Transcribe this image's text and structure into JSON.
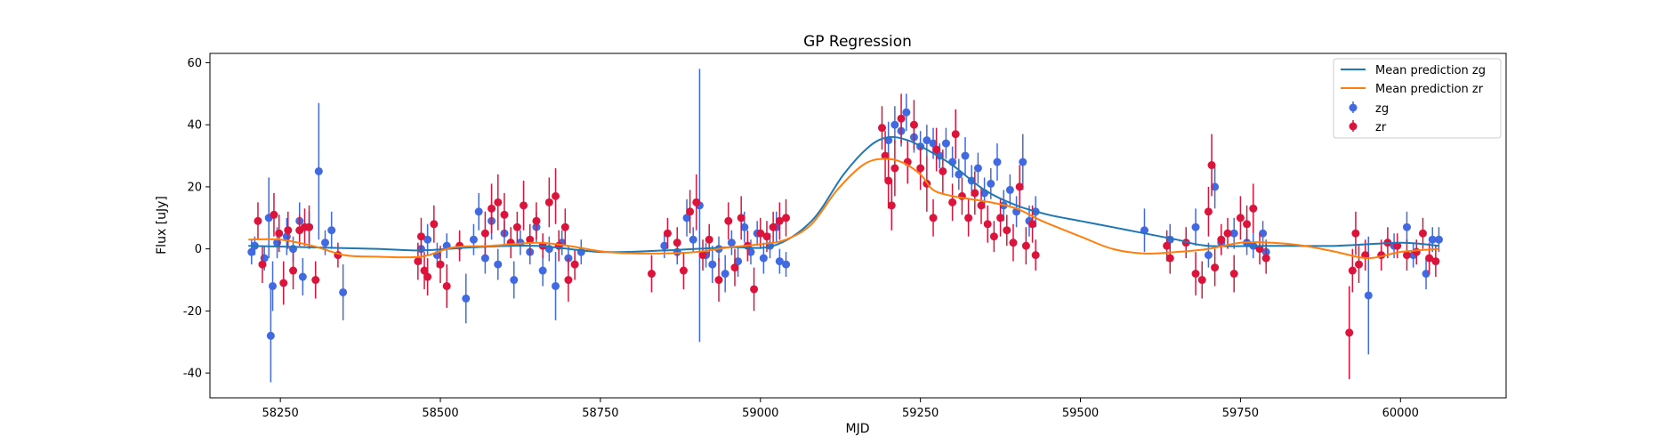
{
  "chart_data": {
    "type": "scatter",
    "title": "GP Regression",
    "xlabel": "MJD",
    "ylabel": "Flux [uJy]",
    "xlim": [
      58140,
      60165
    ],
    "ylim": [
      -48,
      63
    ],
    "xticks": [
      58250,
      58500,
      58750,
      59000,
      59250,
      59500,
      59750,
      60000
    ],
    "yticks": [
      -40,
      -20,
      0,
      20,
      40,
      60
    ],
    "grid": false,
    "legend": "top-right",
    "lines": [
      {
        "name": "Mean prediction zg",
        "color": "#1f77b4",
        "x": [
          58200,
          58300,
          58400,
          58470,
          58550,
          58650,
          58750,
          58850,
          58950,
          59020,
          59080,
          59130,
          59170,
          59200,
          59230,
          59260,
          59300,
          59350,
          59400,
          59450,
          59500,
          59550,
          59600,
          59650,
          59700,
          59800,
          59900,
          60000,
          60060
        ],
        "y": [
          1,
          0.5,
          0,
          -0.5,
          0.5,
          1,
          -1,
          -0.5,
          0.5,
          1,
          9,
          24,
          33,
          36,
          35,
          32,
          27,
          19,
          14,
          11,
          9,
          7,
          5,
          3,
          1,
          1,
          1,
          2,
          1
        ]
      },
      {
        "name": "Mean prediction zr",
        "color": "#ff7f0e",
        "x": [
          58200,
          58250,
          58300,
          58350,
          58400,
          58470,
          58520,
          58580,
          58650,
          58700,
          58760,
          58830,
          58900,
          58950,
          59000,
          59040,
          59080,
          59120,
          59160,
          59190,
          59220,
          59250,
          59270,
          59300,
          59330,
          59360,
          59400,
          59440,
          59500,
          59550,
          59600,
          59650,
          59700,
          59750,
          59800,
          59850,
          59900,
          59950,
          60000,
          60060
        ],
        "y": [
          3,
          3,
          1,
          -2,
          -2.5,
          -2.5,
          0.5,
          1,
          2,
          1,
          -1,
          -1.5,
          -1,
          0.5,
          1.5,
          3,
          8,
          19,
          27,
          29,
          28,
          24,
          19,
          17,
          16,
          15,
          13,
          9,
          4,
          0,
          -1.5,
          -1,
          0,
          2,
          2,
          1,
          -1,
          -3,
          -1,
          0
        ]
      }
    ],
    "series": [
      {
        "name": "zg",
        "color": "#4169e1",
        "points": [
          [
            58205,
            -1,
            4
          ],
          [
            58210,
            1,
            3
          ],
          [
            58225,
            -3,
            4
          ],
          [
            58232,
            10,
            13
          ],
          [
            58235,
            -28,
            15
          ],
          [
            58238,
            -12,
            8
          ],
          [
            58245,
            2,
            5
          ],
          [
            58260,
            4,
            6
          ],
          [
            58270,
            0,
            4
          ],
          [
            58280,
            9,
            6
          ],
          [
            58285,
            -9,
            6
          ],
          [
            58295,
            7,
            5
          ],
          [
            58310,
            25,
            22
          ],
          [
            58320,
            2,
            4
          ],
          [
            58330,
            6,
            6
          ],
          [
            58348,
            -14,
            9
          ],
          [
            58470,
            0,
            5
          ],
          [
            58480,
            3,
            5
          ],
          [
            58495,
            -2,
            4
          ],
          [
            58510,
            1,
            4
          ],
          [
            58540,
            -16,
            8
          ],
          [
            58552,
            3,
            5
          ],
          [
            58560,
            12,
            6
          ],
          [
            58570,
            -3,
            5
          ],
          [
            58580,
            9,
            6
          ],
          [
            58590,
            -5,
            5
          ],
          [
            58600,
            5,
            4
          ],
          [
            58615,
            -10,
            6
          ],
          [
            58625,
            2,
            4
          ],
          [
            58640,
            -1,
            4
          ],
          [
            58650,
            7,
            5
          ],
          [
            58660,
            -7,
            5
          ],
          [
            58670,
            0,
            4
          ],
          [
            58680,
            -12,
            11
          ],
          [
            58690,
            2,
            4
          ],
          [
            58700,
            -3,
            4
          ],
          [
            58720,
            -1,
            4
          ],
          [
            58850,
            1,
            4
          ],
          [
            58870,
            -1,
            4
          ],
          [
            58885,
            10,
            6
          ],
          [
            58895,
            3,
            4
          ],
          [
            58905,
            14,
            44
          ],
          [
            58915,
            -2,
            4
          ],
          [
            58925,
            -5,
            6
          ],
          [
            58935,
            0,
            4
          ],
          [
            58945,
            -8,
            6
          ],
          [
            58955,
            2,
            4
          ],
          [
            58965,
            -4,
            5
          ],
          [
            58975,
            7,
            5
          ],
          [
            58985,
            -1,
            4
          ],
          [
            58995,
            5,
            4
          ],
          [
            59005,
            -3,
            5
          ],
          [
            59015,
            1,
            4
          ],
          [
            59025,
            7,
            5
          ],
          [
            59030,
            -4,
            4
          ],
          [
            59040,
            -5,
            4
          ],
          [
            59200,
            35,
            6
          ],
          [
            59210,
            40,
            6
          ],
          [
            59220,
            38,
            5
          ],
          [
            59228,
            44,
            6
          ],
          [
            59240,
            36,
            5
          ],
          [
            59250,
            33,
            5
          ],
          [
            59260,
            35,
            5
          ],
          [
            59270,
            34,
            5
          ],
          [
            59280,
            30,
            4
          ],
          [
            59290,
            34,
            5
          ],
          [
            59300,
            28,
            5
          ],
          [
            59310,
            24,
            5
          ],
          [
            59320,
            30,
            6
          ],
          [
            59330,
            22,
            5
          ],
          [
            59340,
            26,
            5
          ],
          [
            59350,
            18,
            5
          ],
          [
            59360,
            21,
            5
          ],
          [
            59370,
            28,
            6
          ],
          [
            59380,
            14,
            5
          ],
          [
            59390,
            19,
            5
          ],
          [
            59400,
            12,
            5
          ],
          [
            59410,
            28,
            9
          ],
          [
            59420,
            9,
            5
          ],
          [
            59430,
            12,
            5
          ],
          [
            59600,
            6,
            7
          ],
          [
            59640,
            3,
            5
          ],
          [
            59680,
            7,
            6
          ],
          [
            59700,
            -2,
            4
          ],
          [
            59710,
            20,
            7
          ],
          [
            59720,
            2,
            4
          ],
          [
            59740,
            5,
            5
          ],
          [
            59760,
            2,
            4
          ],
          [
            59770,
            1,
            4
          ],
          [
            59785,
            5,
            4
          ],
          [
            59790,
            -1,
            4
          ],
          [
            59950,
            -15,
            19
          ],
          [
            59990,
            1,
            4
          ],
          [
            60010,
            7,
            5
          ],
          [
            60020,
            -2,
            4
          ],
          [
            60040,
            -8,
            5
          ],
          [
            60050,
            3,
            4
          ],
          [
            60060,
            3,
            4
          ]
        ]
      },
      {
        "name": "zr",
        "color": "#dc143c",
        "points": [
          [
            58215,
            9,
            6
          ],
          [
            58222,
            -5,
            6
          ],
          [
            58240,
            11,
            7
          ],
          [
            58248,
            5,
            6
          ],
          [
            58255,
            -11,
            7
          ],
          [
            58262,
            6,
            6
          ],
          [
            58270,
            -7,
            6
          ],
          [
            58280,
            6,
            5
          ],
          [
            58288,
            7,
            6
          ],
          [
            58295,
            7,
            7
          ],
          [
            58305,
            -10,
            6
          ],
          [
            58340,
            -2,
            4
          ],
          [
            58465,
            -4,
            6
          ],
          [
            58470,
            4,
            6
          ],
          [
            58475,
            -7,
            6
          ],
          [
            58480,
            -9,
            6
          ],
          [
            58490,
            8,
            6
          ],
          [
            58500,
            -5,
            6
          ],
          [
            58510,
            -12,
            7
          ],
          [
            58530,
            1,
            5
          ],
          [
            58570,
            5,
            7
          ],
          [
            58580,
            13,
            8
          ],
          [
            58590,
            15,
            9
          ],
          [
            58600,
            11,
            7
          ],
          [
            58610,
            2,
            5
          ],
          [
            58620,
            7,
            5
          ],
          [
            58630,
            14,
            8
          ],
          [
            58640,
            3,
            5
          ],
          [
            58650,
            9,
            6
          ],
          [
            58660,
            1,
            4
          ],
          [
            58670,
            15,
            8
          ],
          [
            58680,
            17,
            9
          ],
          [
            58685,
            1,
            5
          ],
          [
            58695,
            7,
            6
          ],
          [
            58700,
            -10,
            7
          ],
          [
            58710,
            -5,
            5
          ],
          [
            58830,
            -8,
            6
          ],
          [
            58855,
            5,
            5
          ],
          [
            58870,
            2,
            5
          ],
          [
            58880,
            -7,
            6
          ],
          [
            58890,
            12,
            7
          ],
          [
            58900,
            15,
            9
          ],
          [
            58910,
            -2,
            5
          ],
          [
            58920,
            3,
            5
          ],
          [
            58935,
            -10,
            7
          ],
          [
            58950,
            9,
            6
          ],
          [
            58960,
            -6,
            6
          ],
          [
            58970,
            10,
            7
          ],
          [
            58980,
            1,
            5
          ],
          [
            58990,
            -13,
            7
          ],
          [
            59000,
            5,
            5
          ],
          [
            59010,
            4,
            5
          ],
          [
            59020,
            7,
            5
          ],
          [
            59030,
            9,
            6
          ],
          [
            59040,
            10,
            6
          ],
          [
            59190,
            39,
            7
          ],
          [
            59195,
            30,
            8
          ],
          [
            59200,
            22,
            9
          ],
          [
            59205,
            14,
            8
          ],
          [
            59210,
            26,
            9
          ],
          [
            59220,
            42,
            8
          ],
          [
            59230,
            28,
            7
          ],
          [
            59240,
            40,
            8
          ],
          [
            59250,
            26,
            7
          ],
          [
            59260,
            21,
            9
          ],
          [
            59270,
            10,
            6
          ],
          [
            59275,
            32,
            7
          ],
          [
            59285,
            25,
            7
          ],
          [
            59300,
            15,
            6
          ],
          [
            59305,
            37,
            8
          ],
          [
            59315,
            17,
            6
          ],
          [
            59325,
            10,
            6
          ],
          [
            59335,
            18,
            7
          ],
          [
            59345,
            14,
            6
          ],
          [
            59355,
            8,
            6
          ],
          [
            59365,
            4,
            5
          ],
          [
            59375,
            10,
            6
          ],
          [
            59385,
            6,
            5
          ],
          [
            59395,
            2,
            6
          ],
          [
            59405,
            20,
            7
          ],
          [
            59415,
            1,
            6
          ],
          [
            59425,
            8,
            6
          ],
          [
            59430,
            -2,
            5
          ],
          [
            59635,
            1,
            5
          ],
          [
            59640,
            -3,
            5
          ],
          [
            59665,
            2,
            5
          ],
          [
            59680,
            -8,
            7
          ],
          [
            59690,
            -10,
            6
          ],
          [
            59700,
            12,
            8
          ],
          [
            59705,
            27,
            10
          ],
          [
            59710,
            -6,
            6
          ],
          [
            59720,
            3,
            5
          ],
          [
            59730,
            5,
            5
          ],
          [
            59740,
            -8,
            6
          ],
          [
            59750,
            10,
            7
          ],
          [
            59760,
            8,
            6
          ],
          [
            59770,
            13,
            8
          ],
          [
            59780,
            0,
            5
          ],
          [
            59790,
            -3,
            5
          ],
          [
            59920,
            -27,
            15
          ],
          [
            59925,
            -7,
            7
          ],
          [
            59930,
            5,
            7
          ],
          [
            59935,
            -5,
            6
          ],
          [
            59945,
            -2,
            5
          ],
          [
            59970,
            -2,
            5
          ],
          [
            59980,
            2,
            5
          ],
          [
            59995,
            1,
            4
          ],
          [
            60010,
            -2,
            5
          ],
          [
            60025,
            -1,
            4
          ],
          [
            60035,
            5,
            5
          ],
          [
            60045,
            -3,
            5
          ],
          [
            60055,
            -4,
            5
          ]
        ]
      }
    ]
  }
}
